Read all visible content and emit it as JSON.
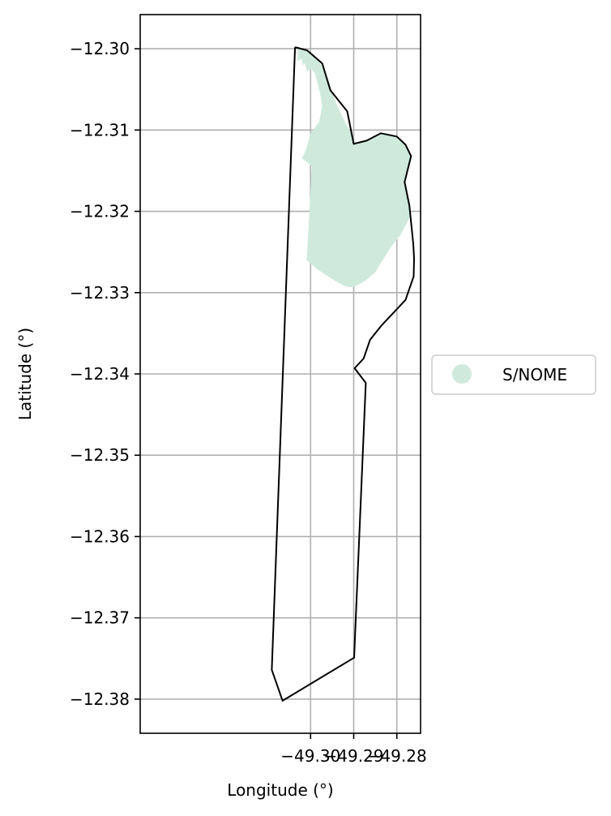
{
  "chart_data": {
    "type": "map",
    "xlabel": "Longitude (°)",
    "ylabel": "Latitude (°)",
    "xlim": [
      -49.3395,
      -49.2745
    ],
    "ylim": [
      -12.3842,
      -12.2958
    ],
    "grid": true,
    "x_ticks": [
      -49.3,
      -49.29,
      -49.28
    ],
    "x_tick_labels": [
      "−49.30",
      "−49.29",
      "−49.28"
    ],
    "y_ticks": [
      -12.3,
      -12.31,
      -12.32,
      -12.33,
      -12.34,
      -12.35,
      -12.36,
      -12.37,
      -12.38
    ],
    "y_tick_labels": [
      "−12.30",
      "−12.31",
      "−12.32",
      "−12.33",
      "−12.34",
      "−12.35",
      "−12.36",
      "−12.37",
      "−12.38"
    ],
    "legend": {
      "placement": "right",
      "entries": [
        {
          "label": "S/NOME",
          "color": "#cfeadd"
        }
      ]
    },
    "fill_color": "#cfeadd",
    "boundary_color": "#000000",
    "boundary": [
      [
        -49.3036,
        -12.2998
      ],
      [
        -49.3008,
        -12.3002
      ],
      [
        -49.2973,
        -12.3018
      ],
      [
        -49.2954,
        -12.3051
      ],
      [
        -49.2915,
        -12.3077
      ],
      [
        -49.29,
        -12.3117
      ],
      [
        -49.287,
        -12.3113
      ],
      [
        -49.2837,
        -12.3104
      ],
      [
        -49.28,
        -12.3108
      ],
      [
        -49.278,
        -12.3118
      ],
      [
        -49.2767,
        -12.3132
      ],
      [
        -49.2782,
        -12.3164
      ],
      [
        -49.2771,
        -12.3193
      ],
      [
        -49.2762,
        -12.324
      ],
      [
        -49.276,
        -12.3258
      ],
      [
        -49.2761,
        -12.328
      ],
      [
        -49.278,
        -12.3309
      ],
      [
        -49.281,
        -12.3326
      ],
      [
        -49.2835,
        -12.334
      ],
      [
        -49.2862,
        -12.3358
      ],
      [
        -49.2877,
        -12.3381
      ],
      [
        -49.2898,
        -12.3393
      ],
      [
        -49.2872,
        -12.3411
      ],
      [
        -49.2899,
        -12.3749
      ],
      [
        -49.3065,
        -12.3802
      ],
      [
        -49.309,
        -12.3764
      ],
      [
        -49.3036,
        -12.2998
      ]
    ],
    "area": [
      [
        -49.303,
        -12.3
      ],
      [
        -49.301,
        -12.3003
      ],
      [
        -49.299,
        -12.3008
      ],
      [
        -49.2975,
        -12.302
      ],
      [
        -49.2958,
        -12.304
      ],
      [
        -49.2942,
        -12.3065
      ],
      [
        -49.2925,
        -12.3085
      ],
      [
        -49.2905,
        -12.3105
      ],
      [
        -49.2895,
        -12.3118
      ],
      [
        -49.287,
        -12.3113
      ],
      [
        -49.2837,
        -12.3104
      ],
      [
        -49.28,
        -12.3108
      ],
      [
        -49.278,
        -12.3118
      ],
      [
        -49.2767,
        -12.3132
      ],
      [
        -49.2782,
        -12.3164
      ],
      [
        -49.2771,
        -12.3193
      ],
      [
        -49.277,
        -12.3207
      ],
      [
        -49.279,
        -12.3228
      ],
      [
        -49.2815,
        -12.3245
      ],
      [
        -49.2833,
        -12.326
      ],
      [
        -49.285,
        -12.3275
      ],
      [
        -49.2872,
        -12.3285
      ],
      [
        -49.2899,
        -12.3293
      ],
      [
        -49.2915,
        -12.3293
      ],
      [
        -49.2935,
        -12.3288
      ],
      [
        -49.296,
        -12.328
      ],
      [
        -49.2985,
        -12.3271
      ],
      [
        -49.3009,
        -12.326
      ],
      [
        -49.2997,
        -12.3145
      ],
      [
        -49.3007,
        -12.314
      ],
      [
        -49.302,
        -12.3135
      ],
      [
        -49.301,
        -12.3123
      ],
      [
        -49.3,
        -12.3104
      ],
      [
        -49.298,
        -12.309
      ],
      [
        -49.2973,
        -12.307
      ],
      [
        -49.2978,
        -12.3055
      ],
      [
        -49.2985,
        -12.304
      ],
      [
        -49.299,
        -12.303
      ],
      [
        -49.2998,
        -12.3025
      ],
      [
        -49.3008,
        -12.3028
      ],
      [
        -49.3013,
        -12.3018
      ],
      [
        -49.3018,
        -12.302
      ],
      [
        -49.3021,
        -12.3012
      ],
      [
        -49.303,
        -12.3015
      ],
      [
        -49.303,
        -12.3
      ]
    ]
  }
}
